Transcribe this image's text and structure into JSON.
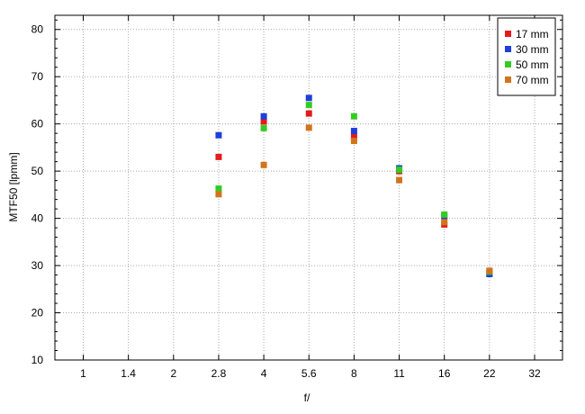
{
  "chart_data": {
    "type": "scatter",
    "xlabel": "f/",
    "ylabel": "MTF50 [lpmm]",
    "x_categories": [
      "1",
      "1.4",
      "2",
      "2.8",
      "4",
      "5.6",
      "8",
      "11",
      "16",
      "22",
      "32"
    ],
    "ylim": [
      10,
      83
    ],
    "yticks": [
      10,
      20,
      30,
      40,
      50,
      60,
      70,
      80
    ],
    "grid": true,
    "legend_position": "top-right",
    "series": [
      {
        "name": "17 mm",
        "color": "#e41a1c",
        "points": [
          {
            "x": "2.8",
            "y": 53.0
          },
          {
            "x": "4",
            "y": 60.5
          },
          {
            "x": "5.6",
            "y": 62.2
          },
          {
            "x": "8",
            "y": 57.3
          },
          {
            "x": "11",
            "y": 50.0
          },
          {
            "x": "16",
            "y": 38.7
          },
          {
            "x": "22",
            "y": 28.4
          }
        ]
      },
      {
        "name": "30 mm",
        "color": "#1f3fd8",
        "points": [
          {
            "x": "2.8",
            "y": 57.6
          },
          {
            "x": "4",
            "y": 61.6
          },
          {
            "x": "5.6",
            "y": 65.5
          },
          {
            "x": "8",
            "y": 58.5
          },
          {
            "x": "11",
            "y": 50.6
          },
          {
            "x": "16",
            "y": 40.4
          },
          {
            "x": "22",
            "y": 28.2
          }
        ]
      },
      {
        "name": "50 mm",
        "color": "#33cc22",
        "points": [
          {
            "x": "2.8",
            "y": 46.3
          },
          {
            "x": "4",
            "y": 59.1
          },
          {
            "x": "5.6",
            "y": 64.0
          },
          {
            "x": "8",
            "y": 61.6
          },
          {
            "x": "11",
            "y": 50.3
          },
          {
            "x": "16",
            "y": 40.8
          },
          {
            "x": "22",
            "y": 28.7
          }
        ]
      },
      {
        "name": "70 mm",
        "color": "#d2741c",
        "points": [
          {
            "x": "2.8",
            "y": 45.1
          },
          {
            "x": "4",
            "y": 51.3
          },
          {
            "x": "5.6",
            "y": 59.2
          },
          {
            "x": "8",
            "y": 56.4
          },
          {
            "x": "11",
            "y": 48.1
          },
          {
            "x": "16",
            "y": 39.2
          },
          {
            "x": "22",
            "y": 28.9
          }
        ]
      }
    ]
  }
}
